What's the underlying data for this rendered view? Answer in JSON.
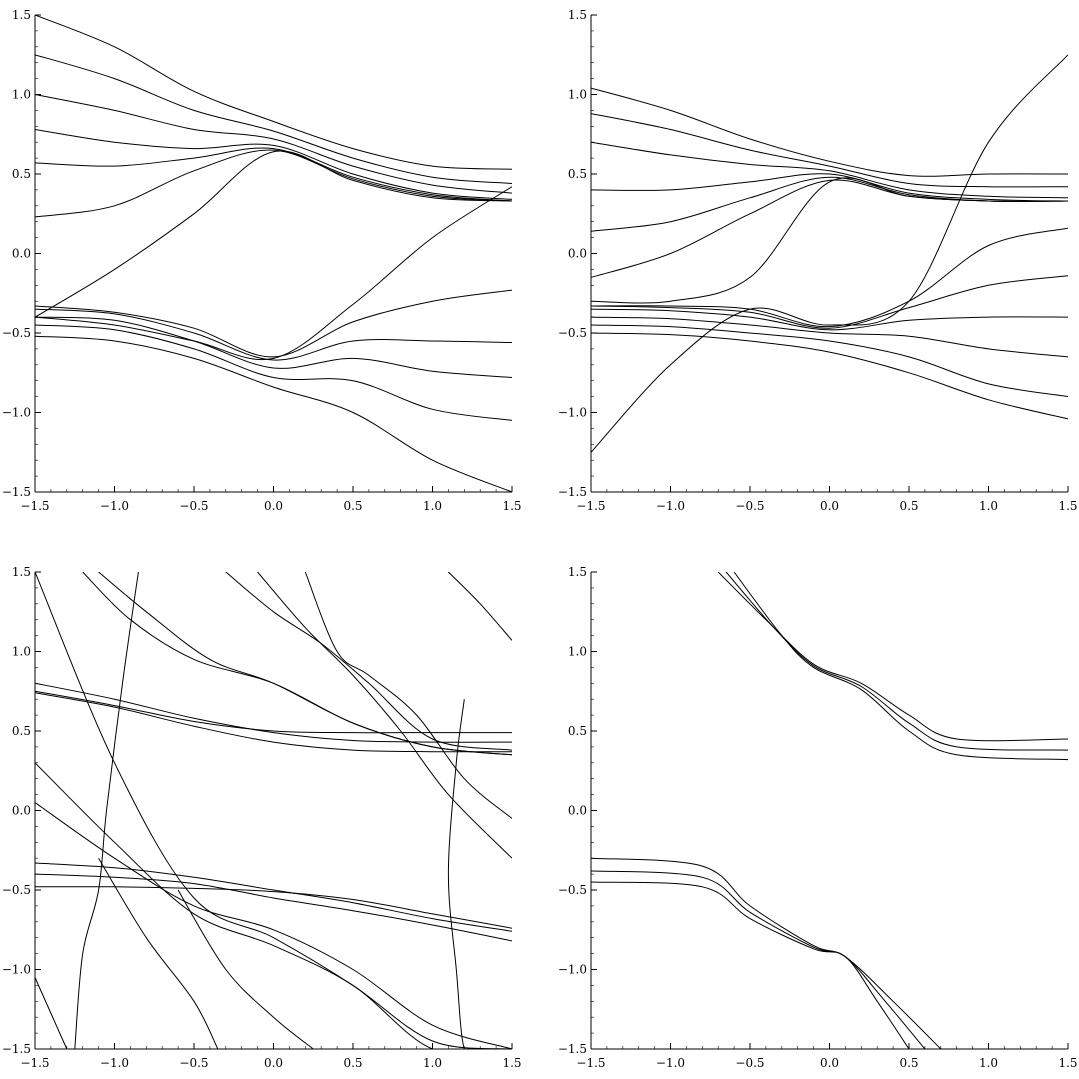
{
  "chart_data": [
    {
      "type": "line",
      "panel": "top-left",
      "title": "",
      "xlabel": "",
      "ylabel": "",
      "xlim": [
        -1.5,
        1.5
      ],
      "ylim": [
        -1.5,
        1.5
      ],
      "xticks": [
        "−1.5",
        "−1.0",
        "−0.5",
        "0.0",
        "0.5",
        "1.0",
        "1.5"
      ],
      "yticks": [
        "−1.5",
        "−1.0",
        "−0.5",
        "0.0",
        "0.5",
        "1.0",
        "1.5"
      ],
      "grid": false,
      "family": "odd_pair_upper_lower_band",
      "series": [
        {
          "x": [
            -1.5,
            -1.0,
            -0.5,
            0.0,
            0.5,
            1.0,
            1.5
          ],
          "y": [
            1.5,
            1.3,
            1.02,
            0.83,
            0.66,
            0.55,
            0.53
          ]
        },
        {
          "x": [
            -1.5,
            -1.0,
            -0.5,
            0.0,
            0.5,
            1.0,
            1.5
          ],
          "y": [
            1.25,
            1.1,
            0.9,
            0.77,
            0.6,
            0.48,
            0.44
          ]
        },
        {
          "x": [
            -1.5,
            -1.0,
            -0.5,
            0.0,
            0.5,
            1.0,
            1.5
          ],
          "y": [
            1.0,
            0.9,
            0.78,
            0.72,
            0.55,
            0.43,
            0.38
          ]
        },
        {
          "x": [
            -1.5,
            -1.0,
            -0.5,
            0.0,
            0.5,
            1.0,
            1.5
          ],
          "y": [
            0.78,
            0.7,
            0.66,
            0.68,
            0.5,
            0.38,
            0.34
          ]
        },
        {
          "x": [
            -1.5,
            -1.0,
            -0.5,
            0.0,
            0.5,
            1.0,
            1.5
          ],
          "y": [
            0.57,
            0.55,
            0.6,
            0.66,
            0.48,
            0.37,
            0.33
          ]
        },
        {
          "x": [
            -1.5,
            -1.0,
            -0.5,
            0.0,
            0.5,
            1.0,
            1.5
          ],
          "y": [
            0.23,
            0.3,
            0.52,
            0.65,
            0.47,
            0.36,
            0.33
          ]
        },
        {
          "x": [
            -1.5,
            -1.0,
            -0.5,
            0.0,
            0.5,
            1.0,
            1.5
          ],
          "y": [
            -0.4,
            -0.1,
            0.25,
            0.64,
            0.46,
            0.35,
            0.33
          ]
        },
        {
          "x": [
            -1.5,
            -1.0,
            -0.5,
            0.0,
            0.5,
            1.0,
            1.5
          ],
          "y": [
            -0.4,
            -0.45,
            -0.55,
            -0.66,
            -0.32,
            0.1,
            0.42
          ]
        },
        {
          "x": [
            -1.5,
            -1.0,
            -0.5,
            0.0,
            0.5,
            1.0,
            1.5
          ],
          "y": [
            -0.33,
            -0.37,
            -0.47,
            -0.65,
            -0.43,
            -0.3,
            -0.23
          ]
        },
        {
          "x": [
            -1.5,
            -1.0,
            -0.5,
            0.0,
            0.5,
            1.0,
            1.5
          ],
          "y": [
            -0.35,
            -0.38,
            -0.5,
            -0.67,
            -0.55,
            -0.55,
            -0.56
          ]
        },
        {
          "x": [
            -1.5,
            -1.0,
            -0.5,
            0.0,
            0.5,
            1.0,
            1.5
          ],
          "y": [
            -0.4,
            -0.42,
            -0.55,
            -0.72,
            -0.66,
            -0.74,
            -0.78
          ]
        },
        {
          "x": [
            -1.5,
            -1.0,
            -0.5,
            0.0,
            0.5,
            1.0,
            1.5
          ],
          "y": [
            -0.45,
            -0.48,
            -0.6,
            -0.78,
            -0.8,
            -0.98,
            -1.05
          ]
        },
        {
          "x": [
            -1.5,
            -1.0,
            -0.5,
            0.0,
            0.5,
            1.0,
            1.5
          ],
          "y": [
            -0.52,
            -0.55,
            -0.66,
            -0.84,
            -1.0,
            -1.3,
            -1.5
          ]
        }
      ]
    },
    {
      "type": "line",
      "panel": "top-right",
      "title": "",
      "xlabel": "",
      "ylabel": "",
      "xlim": [
        -1.5,
        1.5
      ],
      "ylim": [
        -1.5,
        1.5
      ],
      "xticks": [
        "−1.5",
        "−1.0",
        "−0.5",
        "0.0",
        "0.5",
        "1.0",
        "1.5"
      ],
      "yticks": [
        "−1.5",
        "−1.0",
        "−0.5",
        "0.0",
        "0.5",
        "1.0",
        "1.5"
      ],
      "grid": false,
      "family": "even_pair_crossing_band",
      "series": [
        {
          "x": [
            -1.5,
            -1.0,
            -0.5,
            0.0,
            0.5,
            1.0,
            1.5
          ],
          "y": [
            1.04,
            0.9,
            0.72,
            0.58,
            0.49,
            0.5,
            0.5
          ]
        },
        {
          "x": [
            -1.5,
            -1.0,
            -0.5,
            0.0,
            0.5,
            1.0,
            1.5
          ],
          "y": [
            0.88,
            0.78,
            0.65,
            0.55,
            0.44,
            0.42,
            0.42
          ]
        },
        {
          "x": [
            -1.5,
            -1.0,
            -0.5,
            0.0,
            0.5,
            1.0,
            1.5
          ],
          "y": [
            0.7,
            0.62,
            0.56,
            0.52,
            0.4,
            0.36,
            0.35
          ]
        },
        {
          "x": [
            -1.5,
            -1.0,
            -0.5,
            0.0,
            0.5,
            1.0,
            1.5
          ],
          "y": [
            0.4,
            0.4,
            0.45,
            0.5,
            0.38,
            0.34,
            0.33
          ]
        },
        {
          "x": [
            -1.5,
            -1.0,
            -0.5,
            0.0,
            0.5,
            1.0,
            1.5
          ],
          "y": [
            0.14,
            0.2,
            0.35,
            0.48,
            0.37,
            0.33,
            0.33
          ]
        },
        {
          "x": [
            -1.5,
            -1.0,
            -0.5,
            0.0,
            0.5,
            1.0,
            1.5
          ],
          "y": [
            -0.15,
            0.0,
            0.25,
            0.46,
            0.36,
            0.33,
            0.33
          ]
        },
        {
          "x": [
            -1.5,
            -1.0,
            -0.5,
            0.0,
            0.5,
            1.0,
            1.5
          ],
          "y": [
            -0.3,
            -0.3,
            -0.15,
            0.45,
            0.36,
            0.33,
            0.33
          ]
        },
        {
          "x": [
            -1.5,
            -1.0,
            -0.5,
            0.0,
            0.5,
            1.0,
            1.5
          ],
          "y": [
            -1.25,
            -0.7,
            -0.35,
            -0.45,
            -0.3,
            0.7,
            1.25
          ]
        },
        {
          "x": [
            -1.5,
            -1.0,
            -0.5,
            0.0,
            0.5,
            1.0,
            1.5
          ],
          "y": [
            -0.33,
            -0.33,
            -0.35,
            -0.46,
            -0.3,
            0.05,
            0.16
          ]
        },
        {
          "x": [
            -1.5,
            -1.0,
            -0.5,
            0.0,
            0.5,
            1.0,
            1.5
          ],
          "y": [
            -0.33,
            -0.34,
            -0.37,
            -0.47,
            -0.34,
            -0.2,
            -0.14
          ]
        },
        {
          "x": [
            -1.5,
            -1.0,
            -0.5,
            0.0,
            0.5,
            1.0,
            1.5
          ],
          "y": [
            -0.35,
            -0.36,
            -0.4,
            -0.48,
            -0.42,
            -0.4,
            -0.4
          ]
        },
        {
          "x": [
            -1.5,
            -1.0,
            -0.5,
            0.0,
            0.5,
            1.0,
            1.5
          ],
          "y": [
            -0.4,
            -0.41,
            -0.45,
            -0.5,
            -0.52,
            -0.6,
            -0.65
          ]
        },
        {
          "x": [
            -1.5,
            -1.0,
            -0.5,
            0.0,
            0.5,
            1.0,
            1.5
          ],
          "y": [
            -0.45,
            -0.46,
            -0.5,
            -0.55,
            -0.65,
            -0.82,
            -0.9
          ]
        },
        {
          "x": [
            -1.5,
            -1.0,
            -0.5,
            0.0,
            0.5,
            1.0,
            1.5
          ],
          "y": [
            -0.5,
            -0.51,
            -0.55,
            -0.62,
            -0.75,
            -0.92,
            -1.04
          ]
        }
      ]
    },
    {
      "type": "line",
      "panel": "bottom-left",
      "title": "",
      "xlabel": "",
      "ylabel": "",
      "xlim": [
        -1.5,
        1.5
      ],
      "ylim": [
        -1.5,
        1.5
      ],
      "xticks": [
        "−1.5",
        "−1.0",
        "−0.5",
        "0.0",
        "0.5",
        "1.0",
        "1.5"
      ],
      "yticks": [
        "−1.5",
        "−1.0",
        "−0.5",
        "0.0",
        "0.5",
        "1.0",
        "1.5"
      ],
      "grid": false,
      "family": "tangled_bundle",
      "series": [
        {
          "x": [
            -1.5,
            -1.0,
            -0.5,
            0.0,
            0.5,
            1.0,
            1.5
          ],
          "y": [
            0.75,
            0.66,
            0.56,
            0.5,
            0.49,
            0.49,
            0.49
          ]
        },
        {
          "x": [
            -1.5,
            -1.0,
            -0.5,
            0.0,
            0.5,
            1.0,
            1.5
          ],
          "y": [
            0.8,
            0.7,
            0.58,
            0.49,
            0.44,
            0.43,
            0.43
          ]
        },
        {
          "x": [
            -1.5,
            -1.0,
            -0.5,
            0.0,
            0.5,
            1.0,
            1.5
          ],
          "y": [
            0.74,
            0.65,
            0.53,
            0.43,
            0.38,
            0.37,
            0.37
          ]
        },
        {
          "x": [
            -1.5,
            -1.0,
            -0.5,
            0.0,
            0.5,
            1.0,
            1.5
          ],
          "y": [
            -0.33,
            -0.36,
            -0.42,
            -0.5,
            -0.58,
            -0.68,
            -0.76
          ]
        },
        {
          "x": [
            -1.5,
            -1.0,
            -0.5,
            0.0,
            0.5,
            1.0,
            1.5
          ],
          "y": [
            -0.48,
            -0.48,
            -0.49,
            -0.51,
            -0.56,
            -0.65,
            -0.74
          ]
        },
        {
          "x": [
            -1.5,
            -1.0,
            -0.5,
            0.0,
            0.5,
            1.0,
            1.5
          ],
          "y": [
            -0.4,
            -0.42,
            -0.46,
            -0.55,
            -0.63,
            -0.72,
            -0.82
          ]
        },
        {
          "x": [
            -1.5,
            -1.0,
            -0.5,
            0.0,
            0.5,
            1.0,
            1.5
          ],
          "y": [
            1.5,
            0.3,
            -0.55,
            -0.8,
            -1.1,
            -1.45,
            -1.5
          ]
        },
        {
          "x": [
            -1.5,
            -1.0,
            -0.5,
            0.0,
            0.5,
            1.0,
            1.5
          ],
          "y": [
            0.3,
            -0.2,
            -0.65,
            -0.85,
            -1.1,
            -1.5,
            -1.5
          ]
        },
        {
          "x": [
            -1.5,
            -1.0,
            -0.5,
            0.0,
            0.5,
            1.0,
            1.5
          ],
          "y": [
            0.05,
            -0.3,
            -0.6,
            -0.75,
            -1.0,
            -1.35,
            -1.5
          ]
        },
        {
          "x": [
            -1.2,
            -0.9,
            -0.5,
            0.0,
            0.5,
            1.0,
            1.5
          ],
          "y": [
            1.5,
            1.2,
            0.95,
            0.8,
            0.55,
            0.4,
            0.35
          ]
        },
        {
          "x": [
            -1.1,
            -0.8,
            -0.4,
            0.0,
            0.5,
            1.0,
            1.5
          ],
          "y": [
            1.5,
            1.25,
            0.95,
            0.8,
            0.55,
            0.4,
            0.35
          ]
        },
        {
          "x": [
            -0.3,
            0.0,
            0.3,
            0.6,
            1.0,
            1.5
          ],
          "y": [
            1.5,
            1.25,
            1.05,
            0.8,
            0.45,
            0.38
          ]
        },
        {
          "x": [
            -0.1,
            0.2,
            0.5,
            0.8,
            1.1,
            1.5
          ],
          "y": [
            1.5,
            1.15,
            0.85,
            0.5,
            0.1,
            -0.3
          ]
        },
        {
          "x": [
            0.2,
            0.4,
            0.6,
            0.9,
            1.2,
            1.5
          ],
          "y": [
            1.5,
            1.0,
            0.85,
            0.6,
            0.2,
            -0.05
          ]
        },
        {
          "x": [
            1.1,
            1.3,
            1.5
          ],
          "y": [
            1.5,
            1.3,
            1.07
          ]
        },
        {
          "x": [
            -0.85,
            -0.95,
            -1.05,
            -1.1,
            -1.2,
            -1.25
          ],
          "y": [
            1.5,
            0.8,
            0.0,
            -0.5,
            -0.9,
            -1.5
          ]
        },
        {
          "x": [
            1.2,
            1.15,
            1.1,
            1.15,
            1.2,
            1.3
          ],
          "y": [
            0.7,
            0.3,
            -0.4,
            -1.0,
            -1.5,
            -1.5
          ]
        },
        {
          "x": [
            -1.5,
            -1.3
          ],
          "y": [
            -1.05,
            -1.5
          ]
        },
        {
          "x": [
            -1.1,
            -0.8,
            -0.5,
            -0.35
          ],
          "y": [
            -0.3,
            -0.8,
            -1.2,
            -1.5
          ]
        },
        {
          "x": [
            -0.6,
            -0.3,
            0.0,
            0.25
          ],
          "y": [
            -0.5,
            -1.0,
            -1.3,
            -1.5
          ]
        }
      ]
    },
    {
      "type": "line",
      "panel": "bottom-right",
      "title": "",
      "xlabel": "",
      "ylabel": "",
      "xlim": [
        -1.5,
        1.5
      ],
      "ylim": [
        -1.5,
        1.5
      ],
      "xticks": [
        "−1.5",
        "−1.0",
        "−0.5",
        "0.0",
        "0.5",
        "1.0",
        "1.5"
      ],
      "yticks": [
        "−1.5",
        "−1.0",
        "−0.5",
        "0.0",
        "0.5",
        "1.0",
        "1.5"
      ],
      "grid": false,
      "family": "two_pinched_bundles",
      "series": [
        {
          "x": [
            -0.7,
            -0.4,
            -0.1,
            0.2,
            0.5,
            0.8,
            1.5
          ],
          "y": [
            1.5,
            1.2,
            0.92,
            0.8,
            0.6,
            0.45,
            0.45
          ]
        },
        {
          "x": [
            -0.65,
            -0.35,
            -0.1,
            0.2,
            0.5,
            0.8,
            1.5
          ],
          "y": [
            1.5,
            1.15,
            0.91,
            0.78,
            0.55,
            0.4,
            0.38
          ]
        },
        {
          "x": [
            -0.6,
            -0.3,
            -0.1,
            0.2,
            0.5,
            0.8,
            1.5
          ],
          "y": [
            1.5,
            1.1,
            0.9,
            0.76,
            0.5,
            0.35,
            0.32
          ]
        },
        {
          "x": [
            -1.5,
            -0.8,
            -0.5,
            -0.1,
            0.1,
            0.4,
            0.7
          ],
          "y": [
            -0.3,
            -0.35,
            -0.6,
            -0.85,
            -0.92,
            -1.2,
            -1.5
          ]
        },
        {
          "x": [
            -1.5,
            -0.8,
            -0.5,
            -0.1,
            0.1,
            0.35,
            0.6
          ],
          "y": [
            -0.38,
            -0.42,
            -0.64,
            -0.86,
            -0.92,
            -1.2,
            -1.5
          ]
        },
        {
          "x": [
            -1.5,
            -0.8,
            -0.5,
            -0.1,
            0.1,
            0.3,
            0.5
          ],
          "y": [
            -0.45,
            -0.48,
            -0.68,
            -0.87,
            -0.92,
            -1.2,
            -1.5
          ]
        }
      ]
    }
  ]
}
